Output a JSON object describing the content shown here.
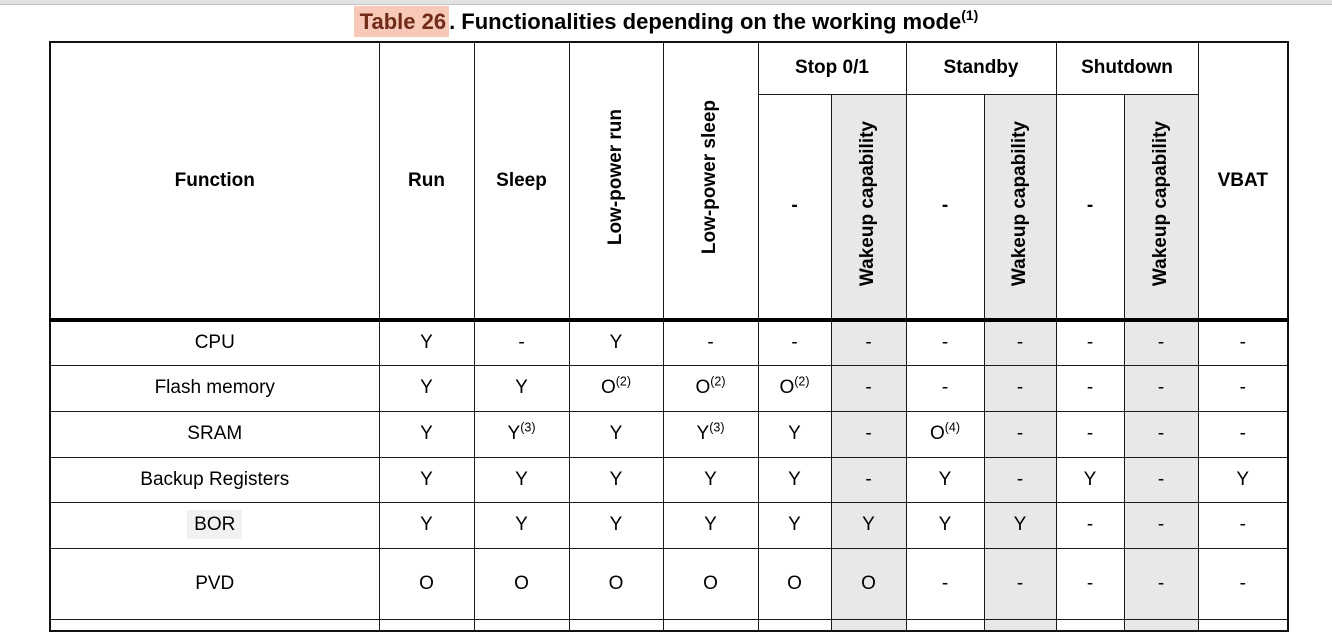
{
  "caption": {
    "table_ref": "Table 26",
    "text": ". Functionalities depending on the working mode",
    "footnote_ref": "(1)"
  },
  "colors": {
    "shade": "#e8e8e8",
    "strip": "#e2e2e2",
    "caption-highlight": "#f8c9b8",
    "caption-highlight-text": "#702a18",
    "bor-highlight": "#f1f1f1"
  },
  "table": {
    "col_headers": {
      "function": "Function",
      "run": "Run",
      "sleep": "Sleep",
      "lp_run": "Low-power run",
      "lp_sleep": "Low-power sleep",
      "stop": "Stop 0/1",
      "standby": "Standby",
      "shutdown": "Shutdown",
      "vbat": "VBAT",
      "no_wakeup": "-",
      "wakeup": "Wakeup capability"
    },
    "rows": [
      {
        "function": "CPU",
        "cells": [
          "Y",
          "-",
          "Y",
          "-",
          "-",
          "-",
          "-",
          "-",
          "-",
          "-",
          "-"
        ]
      },
      {
        "function": "Flash memory",
        "cells": [
          "Y",
          "Y",
          {
            "v": "O",
            "s": "(2)"
          },
          {
            "v": "O",
            "s": "(2)"
          },
          {
            "v": "O",
            "s": "(2)"
          },
          "-",
          "-",
          "-",
          "-",
          "-",
          "-"
        ]
      },
      {
        "function": "SRAM",
        "cells": [
          "Y",
          {
            "v": "Y",
            "s": "(3)"
          },
          "Y",
          {
            "v": "Y",
            "s": "(3)"
          },
          "Y",
          "-",
          {
            "v": "O",
            "s": "(4)"
          },
          "-",
          "-",
          "-",
          "-"
        ]
      },
      {
        "function": "Backup Registers",
        "cells": [
          "Y",
          "Y",
          "Y",
          "Y",
          "Y",
          "-",
          "Y",
          "-",
          "Y",
          "-",
          "Y"
        ]
      },
      {
        "function": "BOR",
        "label_highlight": true,
        "cells": [
          "Y",
          "Y",
          "Y",
          "Y",
          "Y",
          "Y",
          "Y",
          "Y",
          "-",
          "-",
          "-"
        ]
      },
      {
        "function": "PVD",
        "cells": [
          "O",
          "O",
          "O",
          "O",
          "O",
          "O",
          "-",
          "-",
          "-",
          "-",
          "-"
        ]
      }
    ]
  }
}
